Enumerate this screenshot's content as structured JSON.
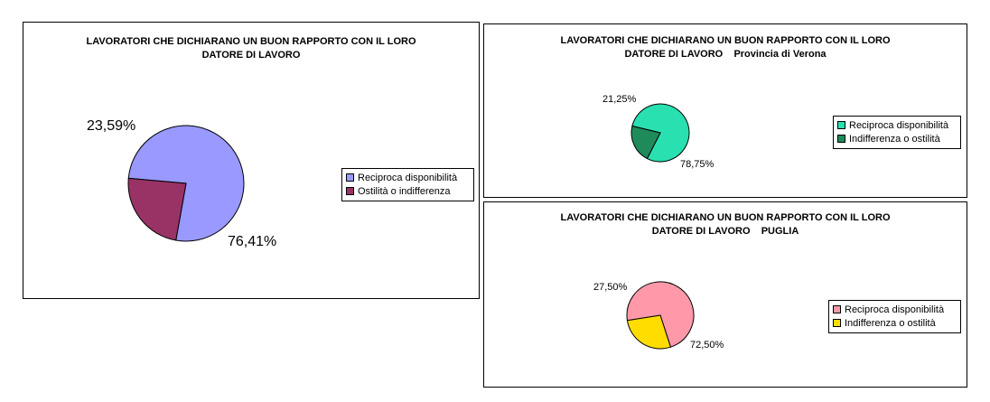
{
  "chart_data": [
    {
      "type": "pie",
      "title_lines": [
        "LAVORATORI CHE DICHIARANO UN BUON RAPPORTO CON IL LORO",
        "DATORE DI LAVORO"
      ],
      "categories": [
        "Reciproca disponibilità",
        "Ostilità o indifferenza"
      ],
      "values": [
        76.41,
        23.59
      ],
      "labels": [
        "76,41%",
        "23,59%"
      ],
      "colors": [
        "#9999ff",
        "#993366"
      ],
      "legend_position": "right"
    },
    {
      "type": "pie",
      "title_lines": [
        "LAVORATORI CHE DICHIARANO UN BUON RAPPORTO CON IL LORO",
        "DATORE DI LAVORO    Provincia di Verona"
      ],
      "categories": [
        "Reciproca disponibilità",
        "Indifferenza o ostilità"
      ],
      "values": [
        78.75,
        21.25
      ],
      "labels": [
        "78,75%",
        "21,25%"
      ],
      "colors": [
        "#29e0b0",
        "#1f8a5a"
      ],
      "legend_position": "right"
    },
    {
      "type": "pie",
      "title_lines": [
        "LAVORATORI CHE DICHIARANO UN BUON RAPPORTO CON IL LORO",
        "DATORE DI LAVORO    PUGLIA"
      ],
      "categories": [
        "Reciproca disponibilità",
        "Indifferenza o ostilità"
      ],
      "values": [
        72.5,
        27.5
      ],
      "labels": [
        "72,50%",
        "27,50%"
      ],
      "colors": [
        "#ff99aa",
        "#ffdd00"
      ],
      "legend_position": "right"
    }
  ]
}
